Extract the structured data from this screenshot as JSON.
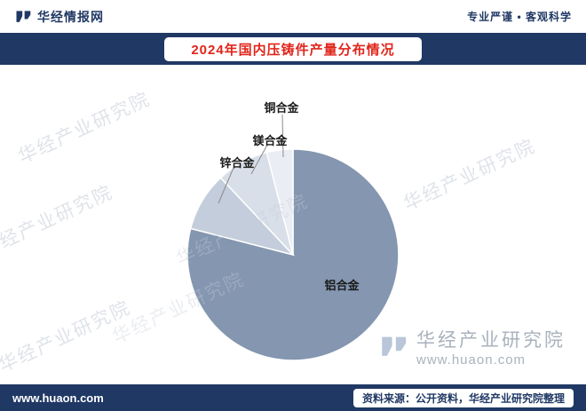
{
  "header": {
    "brand": "华经情报网",
    "slogan": "专业严谨 • 客观科学"
  },
  "chart_data": {
    "type": "pie",
    "title": "2024年国内压铸件产量分布情况",
    "categories": [
      "铝合金",
      "锌合金",
      "镁合金",
      "铜合金"
    ],
    "values": [
      79,
      9,
      8,
      4
    ],
    "value_note": "percent share, estimated from slice angles (no numeric labels shown)",
    "colors": [
      "#8496b0",
      "#c3cddb",
      "#d9dfe9",
      "#eaedf3"
    ],
    "start_angle": "12 o'clock",
    "direction": "clockwise",
    "legend": "none",
    "labels_on_chart": true
  },
  "watermark": {
    "name": "华经产业研究院",
    "site": "www.huaon.com"
  },
  "footer": {
    "site": "www.huaon.com",
    "source": "资料来源：公开资料，华经产业研究院整理"
  },
  "colors": {
    "navy": "#203864",
    "title_red": "#e1251b",
    "leader_line": "#8a8a8a"
  }
}
